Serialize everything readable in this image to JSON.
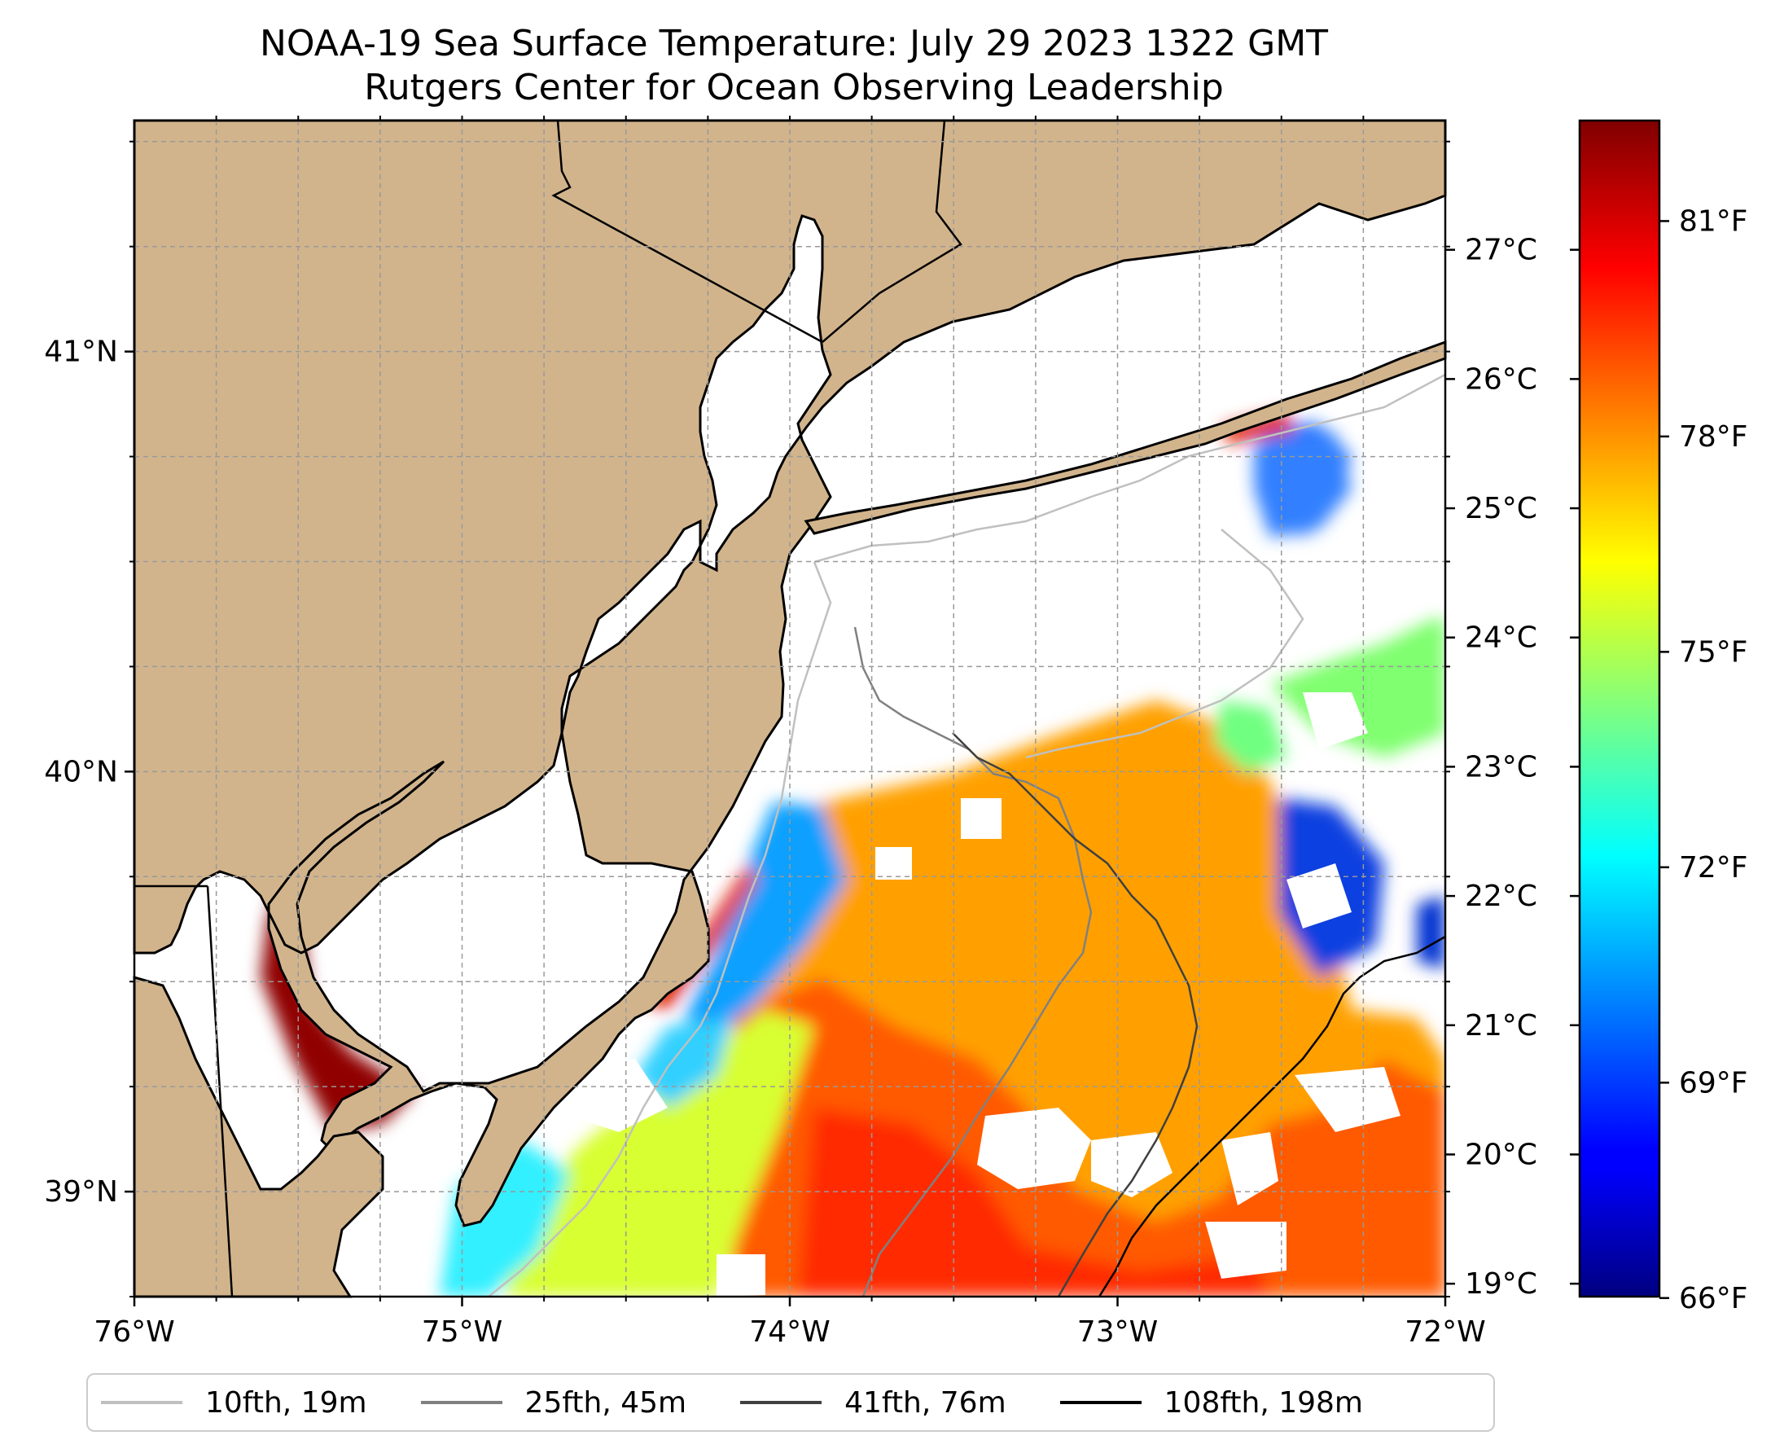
{
  "title": {
    "line1": "NOAA-19 Sea Surface Temperature: July 29 2023 1322 GMT",
    "line2": "Rutgers Center for Ocean Observing Leadership"
  },
  "map": {
    "lon_range": [
      -76,
      -72
    ],
    "lat_range": [
      38.75,
      41.55
    ],
    "x_ticks": [
      {
        "value": -76,
        "label": "76°W"
      },
      {
        "value": -75,
        "label": "75°W"
      },
      {
        "value": -74,
        "label": "74°W"
      },
      {
        "value": -73,
        "label": "73°W"
      },
      {
        "value": -72,
        "label": "72°W"
      }
    ],
    "y_ticks": [
      {
        "value": 39,
        "label": "39°N"
      },
      {
        "value": 40,
        "label": "40°N"
      },
      {
        "value": 41,
        "label": "41°N"
      }
    ],
    "gridlines": true,
    "land_color": "#d2b48c",
    "ocean_color": "#ffffff"
  },
  "colorbar": {
    "colormap": "jet",
    "celsius_ticks": [
      "19°C",
      "20°C",
      "21°C",
      "22°C",
      "23°C",
      "24°C",
      "25°C",
      "26°C",
      "27°C"
    ],
    "fahrenheit_ticks": [
      "66°F",
      "69°F",
      "72°F",
      "75°F",
      "78°F",
      "81°F"
    ],
    "range_celsius": [
      18.9,
      28.0
    ]
  },
  "legend": {
    "placement": "bottom",
    "entries": [
      {
        "label": "10fth, 19m",
        "color": "#c0c0c0"
      },
      {
        "label": "25fth, 45m",
        "color": "#808080"
      },
      {
        "label": "41fth, 76m",
        "color": "#404040"
      },
      {
        "label": "108fth, 198m",
        "color": "#000000"
      }
    ]
  }
}
